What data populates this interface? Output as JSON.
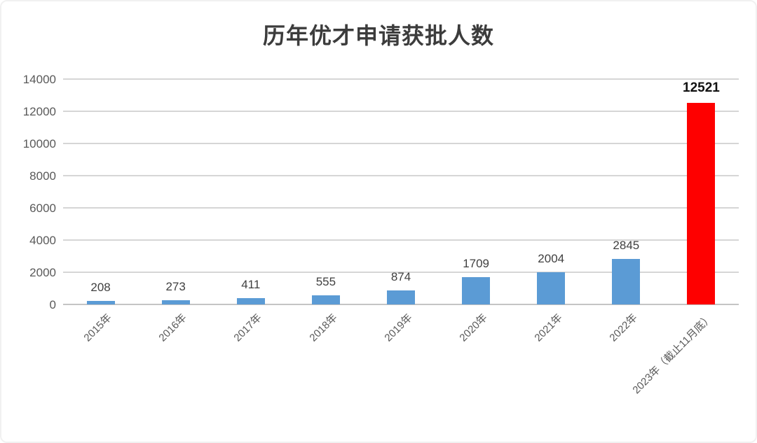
{
  "chart_data": {
    "type": "bar",
    "title": "历年优才申请获批人数",
    "categories": [
      "2015年",
      "2016年",
      "2017年",
      "2018年",
      "2019年",
      "2020年",
      "2021年",
      "2022年",
      "2023年（截止11月底）"
    ],
    "values": [
      208,
      273,
      411,
      555,
      874,
      1709,
      2004,
      2845,
      12521
    ],
    "data_labels": [
      "208",
      "273",
      "411",
      "555",
      "874",
      "1709",
      "2004",
      "2845",
      "12521"
    ],
    "highlight_index": 8,
    "xlabel": "",
    "ylabel": "",
    "ylim": [
      0,
      14000
    ],
    "yticks": [
      0,
      2000,
      4000,
      6000,
      8000,
      10000,
      12000,
      14000
    ],
    "grid": true,
    "legend": "none",
    "colors": {
      "bar_default": "#5B9BD5",
      "bar_highlight": "#FE0000",
      "grid": "#D6D6D6",
      "axis": "#C4C4C4",
      "tick_label": "#595959",
      "data_label": "#3F3F3F",
      "highlight_label": "#111111",
      "title": "#3C3C3C",
      "background": "#FFFFFF"
    }
  }
}
